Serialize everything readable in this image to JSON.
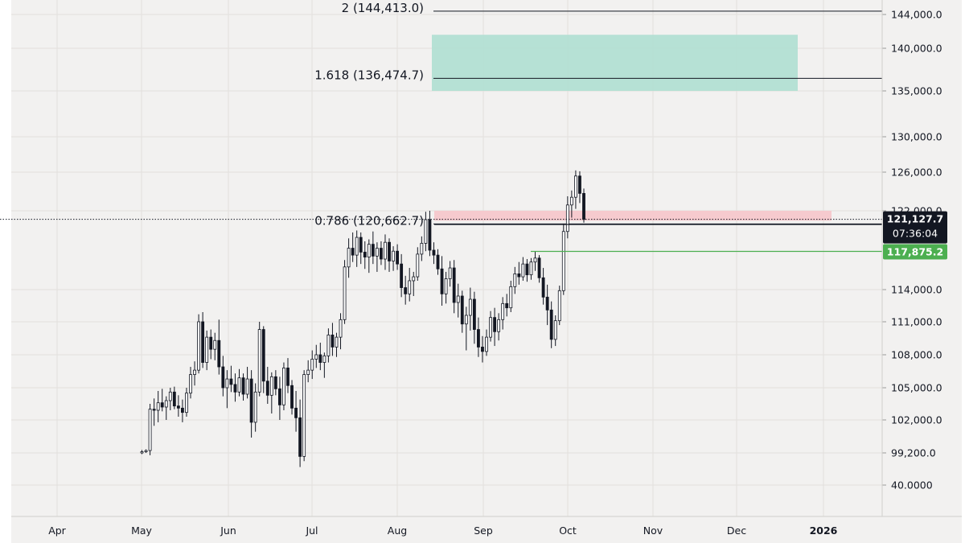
{
  "chart_data": {
    "type": "candlestick",
    "price_axis_labels": [
      "144,000.0",
      "140,000.0",
      "135,000.0",
      "130,000.0",
      "126,000.0",
      "122,000.0",
      "114,000.0",
      "111,000.0",
      "108,000.0",
      "105,000.0",
      "102,000.0",
      "99,200.0",
      "40.0000"
    ],
    "time_axis_labels": [
      "Apr",
      "May",
      "Jun",
      "Jul",
      "Aug",
      "Sep",
      "Oct",
      "Nov",
      "Dec",
      "2026"
    ],
    "fib_levels": [
      {
        "label": "2 (144,413.0)",
        "price": 144413.0
      },
      {
        "label": "1.618 (136,474.7)",
        "price": 136474.7
      },
      {
        "label": "0.786 (120,662.7)",
        "price": 120662.7
      }
    ],
    "zones": [
      {
        "kind": "target",
        "top_price": 141600,
        "bottom_price": 135000,
        "color": "#b2dfd3"
      },
      {
        "kind": "resistance",
        "top_price": 122000,
        "bottom_price": 121000,
        "color": "#f6c7cb"
      }
    ],
    "current_price": {
      "value": 121127.7,
      "label": "121,127.7",
      "countdown": "07:36:04"
    },
    "support_tag": {
      "value": 117875.2,
      "label": "117,875.2",
      "color": "#4caf50"
    },
    "candles": [
      [
        99200,
        99450,
        99100,
        99300
      ],
      [
        99300,
        99500,
        99200,
        99400
      ],
      [
        99400,
        103500,
        99000,
        103000
      ],
      [
        103000,
        104000,
        101500,
        102900
      ],
      [
        102900,
        104700,
        101800,
        103600
      ],
      [
        103600,
        104900,
        102800,
        103200
      ],
      [
        103200,
        104200,
        102000,
        103800
      ],
      [
        103800,
        105000,
        102900,
        104600
      ],
      [
        104600,
        105100,
        103000,
        103300
      ],
      [
        103300,
        104300,
        102300,
        103100
      ],
      [
        103100,
        103900,
        101800,
        102700
      ],
      [
        102700,
        105000,
        102300,
        104500
      ],
      [
        104500,
        106900,
        104000,
        106200
      ],
      [
        106200,
        107400,
        105200,
        106600
      ],
      [
        106600,
        111700,
        106300,
        111000
      ],
      [
        111000,
        111900,
        106800,
        107300
      ],
      [
        107300,
        110200,
        106600,
        109600
      ],
      [
        109600,
        110300,
        107600,
        108500
      ],
      [
        108500,
        110000,
        107500,
        109300
      ],
      [
        109300,
        111200,
        106200,
        106900
      ],
      [
        106900,
        107900,
        104200,
        105000
      ],
      [
        105000,
        106600,
        103100,
        105800
      ],
      [
        105800,
        107000,
        104600,
        105300
      ],
      [
        105300,
        106300,
        103700,
        104600
      ],
      [
        104600,
        106700,
        104200,
        105900
      ],
      [
        105900,
        106300,
        103800,
        104400
      ],
      [
        104400,
        106900,
        104000,
        105800
      ],
      [
        105800,
        106600,
        100500,
        101800
      ],
      [
        101800,
        105400,
        101000,
        104600
      ],
      [
        104600,
        111000,
        104200,
        110300
      ],
      [
        110300,
        110600,
        104500,
        105600
      ],
      [
        105600,
        106900,
        103500,
        104300
      ],
      [
        104300,
        106400,
        102600,
        106000
      ],
      [
        106000,
        106600,
        104300,
        104900
      ],
      [
        104900,
        106000,
        102000,
        103400
      ],
      [
        103400,
        107300,
        102900,
        106800
      ],
      [
        106800,
        107700,
        104500,
        105200
      ],
      [
        105200,
        105700,
        102500,
        103100
      ],
      [
        103100,
        104700,
        101000,
        102200
      ],
      [
        102200,
        103900,
        98000,
        98900
      ],
      [
        98900,
        106600,
        98500,
        106200
      ],
      [
        106200,
        107500,
        105500,
        106600
      ],
      [
        106600,
        108400,
        105800,
        107600
      ],
      [
        107600,
        108900,
        106800,
        108000
      ],
      [
        108000,
        109100,
        106600,
        107300
      ],
      [
        107300,
        108200,
        105900,
        107900
      ],
      [
        107900,
        110400,
        107300,
        109800
      ],
      [
        109800,
        110900,
        107900,
        108700
      ],
      [
        108700,
        110000,
        107800,
        109600
      ],
      [
        109600,
        111800,
        108500,
        111200
      ],
      [
        111200,
        117000,
        110800,
        116300
      ],
      [
        116300,
        119200,
        115200,
        118200
      ],
      [
        118200,
        119800,
        116800,
        117500
      ],
      [
        117500,
        120000,
        116300,
        119300
      ],
      [
        119300,
        119800,
        116600,
        117800
      ],
      [
        117800,
        118900,
        116100,
        117300
      ],
      [
        117300,
        119100,
        115700,
        118600
      ],
      [
        118600,
        119900,
        116600,
        117400
      ],
      [
        117400,
        118800,
        115800,
        118200
      ],
      [
        118200,
        118900,
        116500,
        117100
      ],
      [
        117100,
        119600,
        116000,
        118800
      ],
      [
        118800,
        119200,
        115800,
        116900
      ],
      [
        116900,
        118400,
        115900,
        117900
      ],
      [
        117900,
        118600,
        116000,
        116600
      ],
      [
        116600,
        117600,
        113300,
        114200
      ],
      [
        114200,
        115400,
        112600,
        113600
      ],
      [
        113600,
        116200,
        112900,
        114900
      ],
      [
        114900,
        115800,
        113400,
        115300
      ],
      [
        115300,
        118300,
        114900,
        117600
      ],
      [
        117600,
        119400,
        116900,
        118700
      ],
      [
        118700,
        121900,
        117900,
        121100
      ],
      [
        121100,
        122000,
        117400,
        118000
      ],
      [
        118000,
        118800,
        116600,
        117500
      ],
      [
        117500,
        118100,
        115500,
        116100
      ],
      [
        116100,
        117400,
        112500,
        113600
      ],
      [
        113600,
        115800,
        112700,
        115100
      ],
      [
        115100,
        116900,
        114300,
        116200
      ],
      [
        116200,
        117000,
        111800,
        112800
      ],
      [
        112800,
        114600,
        111400,
        113400
      ],
      [
        113400,
        113900,
        110000,
        110800
      ],
      [
        110800,
        112400,
        108400,
        111600
      ],
      [
        111600,
        114200,
        110200,
        113100
      ],
      [
        113100,
        113800,
        109000,
        110300
      ],
      [
        110300,
        111400,
        107800,
        108700
      ],
      [
        108700,
        109700,
        107300,
        108300
      ],
      [
        108300,
        110300,
        107900,
        109600
      ],
      [
        109600,
        112000,
        109200,
        111400
      ],
      [
        111400,
        112300,
        108800,
        110100
      ],
      [
        110100,
        111800,
        109300,
        111200
      ],
      [
        111200,
        113300,
        110300,
        112700
      ],
      [
        112700,
        113600,
        111500,
        112300
      ],
      [
        112300,
        114900,
        111900,
        114300
      ],
      [
        114300,
        116300,
        113600,
        115600
      ],
      [
        115600,
        116800,
        114500,
        115300
      ],
      [
        115300,
        117300,
        114900,
        116600
      ],
      [
        116600,
        117100,
        114800,
        115500
      ],
      [
        115500,
        117200,
        115000,
        116800
      ],
      [
        116800,
        117900,
        115900,
        117200
      ],
      [
        117200,
        117500,
        114700,
        115200
      ],
      [
        115200,
        116200,
        112600,
        113300
      ],
      [
        113300,
        114500,
        110700,
        112100
      ],
      [
        112100,
        112900,
        108600,
        109400
      ],
      [
        109400,
        111600,
        108800,
        111100
      ],
      [
        111100,
        114400,
        110700,
        113900
      ],
      [
        113900,
        120700,
        113500,
        119900
      ],
      [
        119900,
        123500,
        119200,
        122600
      ],
      [
        122600,
        124100,
        121300,
        123400
      ],
      [
        123400,
        126200,
        122200,
        125600
      ],
      [
        125600,
        126100,
        122800,
        123800
      ],
      [
        123800,
        124300,
        120800,
        121127.7
      ]
    ]
  }
}
